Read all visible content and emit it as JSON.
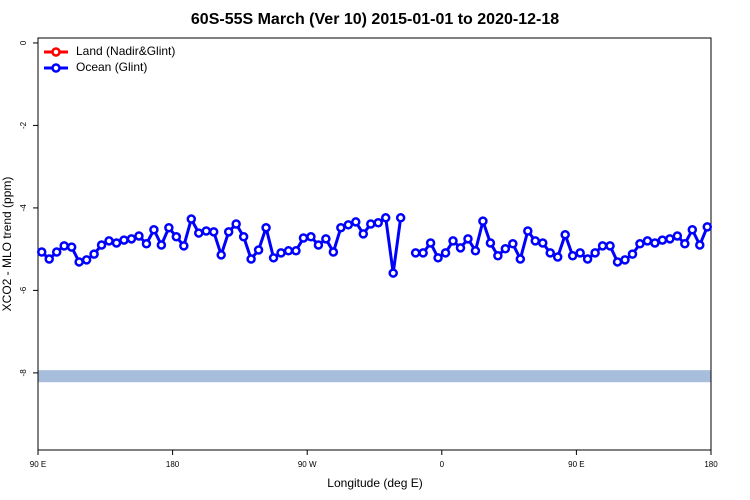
{
  "chart_data": {
    "type": "line",
    "title": "60S-55S March (Ver 10)   2015-01-01 to 2020-12-18",
    "x_label": "Longitude (deg E)",
    "y_label": "XCO2 - MLO trend (ppm)",
    "xlim": [
      90,
      540
    ],
    "ylim": [
      -9.87,
      0.12
    ],
    "xticks": [
      {
        "value": 90,
        "label": "90 E"
      },
      180,
      {
        "value": 270,
        "label": "90 W"
      },
      {
        "value": 360,
        "label": "0"
      },
      {
        "value": 450,
        "label": "90 E"
      },
      {
        "value": 540,
        "label": "180"
      }
    ],
    "yticks": [
      0,
      -2,
      -4,
      -6,
      -8
    ],
    "legend": "topleft",
    "band": {
      "value": -8.08,
      "color": "#a6bddb"
    },
    "x": [
      92.5,
      97.5,
      102.5,
      107.5,
      112.5,
      117.5,
      122.5,
      127.5,
      132.5,
      137.5,
      142.5,
      147.5,
      152.5,
      157.5,
      162.5,
      167.5,
      172.5,
      177.5,
      182.5,
      187.5,
      192.5,
      197.5,
      202.5,
      207.5,
      212.5,
      217.5,
      222.5,
      227.5,
      232.5,
      237.5,
      242.5,
      247.5,
      252.5,
      257.5,
      262.5,
      267.5,
      272.5,
      277.5,
      282.5,
      287.5,
      292.5,
      297.5,
      302.5,
      307.5,
      312.5,
      317.5,
      322.5,
      327.5,
      332.5,
      337.5,
      342.5,
      347.5,
      352.5,
      357.5,
      362.5,
      367.5,
      372.5,
      377.5,
      382.5,
      387.5,
      392.5,
      397.5,
      402.5,
      407.5,
      412.5,
      417.5,
      422.5,
      427.5,
      432.5,
      437.5,
      442.5,
      447.5,
      452.5,
      457.5,
      462.5,
      467.5,
      472.5,
      477.5,
      482.5,
      487.5,
      492.5,
      497.5,
      502.5,
      507.5,
      512.5,
      517.5,
      522.5,
      527.5,
      532.5,
      537.5
    ],
    "series": [
      {
        "name": "Land (Nadir&Glint)",
        "color": "#ff0000",
        "values": [
          null,
          null,
          null,
          null,
          null,
          null,
          null,
          null,
          null,
          null,
          null,
          null,
          null,
          null,
          null,
          null,
          null,
          null,
          null,
          null,
          null,
          null,
          null,
          null,
          null,
          null,
          null,
          null,
          null,
          null,
          null,
          null,
          null,
          null,
          null,
          null,
          null,
          null,
          null,
          null,
          null,
          null,
          null,
          null,
          null,
          null,
          null,
          null,
          null,
          null,
          null,
          null,
          null,
          null,
          null,
          null,
          null,
          null,
          null,
          null,
          null,
          null,
          null,
          null,
          null,
          null,
          null,
          null,
          null,
          null,
          null,
          null,
          null,
          null,
          null,
          null,
          null,
          null,
          null,
          null,
          null,
          null,
          null,
          null,
          null,
          null,
          null,
          null,
          null,
          null
        ]
      },
      {
        "name": "Ocean (Glint)",
        "color": "#0000ff",
        "values": [
          -5.07,
          -5.24,
          -5.07,
          -4.92,
          -4.95,
          -5.31,
          -5.26,
          -5.12,
          -4.9,
          -4.8,
          -4.85,
          -4.78,
          -4.75,
          -4.68,
          -4.87,
          -4.53,
          -4.9,
          -4.48,
          -4.7,
          -4.92,
          -4.27,
          -4.61,
          -4.56,
          -4.58,
          -5.14,
          -4.58,
          -4.39,
          -4.7,
          -5.24,
          -5.02,
          -4.48,
          -5.21,
          -5.09,
          -5.04,
          -5.04,
          -4.73,
          -4.7,
          -4.9,
          -4.75,
          -5.07,
          -4.48,
          -4.41,
          -4.34,
          -4.63,
          -4.39,
          -4.36,
          -4.24,
          -5.58,
          -4.24,
          null,
          -5.09,
          -5.09,
          -4.85,
          -5.21,
          -5.09,
          -4.8,
          -4.97,
          -4.75,
          -5.04,
          -4.32,
          -4.85,
          -5.16,
          -4.99,
          -4.87,
          -5.24,
          -4.56,
          -4.8,
          -4.85,
          -5.09,
          -5.19,
          -4.65,
          -5.16,
          -5.09,
          -5.24,
          -5.09,
          -4.92,
          -4.92,
          -5.31,
          -5.26,
          -5.12,
          -4.87,
          -4.8,
          -4.85,
          -4.78,
          -4.75,
          -4.68,
          -4.87,
          -4.53,
          -4.9,
          -4.46
        ]
      }
    ]
  }
}
